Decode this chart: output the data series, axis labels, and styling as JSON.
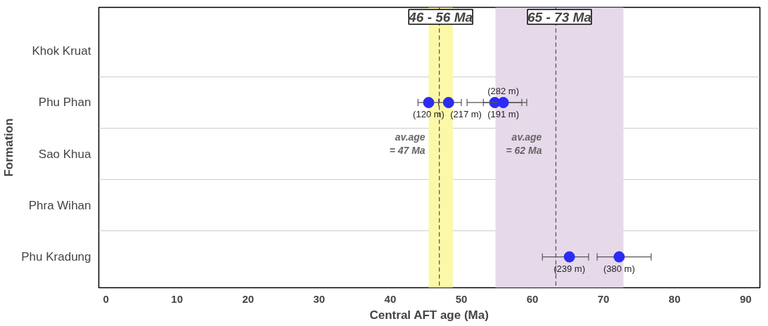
{
  "chart_data": {
    "type": "scatter",
    "orientation": "horizontal",
    "xlabel": "Central AFT age (Ma)",
    "ylabel": "Formation",
    "categories": [
      "Khok Kruat",
      "Phu Phan",
      "Sao Khua",
      "Phra Wihan",
      "Phu Kradung"
    ],
    "xlim": [
      -1,
      92
    ],
    "xticks": [
      0,
      10,
      20,
      30,
      40,
      50,
      60,
      70,
      80,
      90
    ],
    "grid": "y",
    "marker": "circle",
    "legend": false,
    "series": [
      {
        "color": "#2b2bf5",
        "values": [
          null,
          45.4,
          null,
          null,
          65.2
        ],
        "errors": [
          null,
          [
            43.9,
            46.8
          ],
          null,
          null,
          [
            61.4,
            67.9
          ]
        ]
      },
      {
        "color": "#2b2bf5",
        "values": [
          null,
          48.2,
          null,
          null,
          72.2
        ],
        "errors": [
          null,
          [
            46.8,
            50.0
          ],
          null,
          null,
          [
            69.1,
            76.7
          ]
        ]
      },
      {
        "color": "#2b2bf5",
        "values": [
          null,
          54.7,
          null,
          null,
          null
        ],
        "errors": [
          null,
          [
            50.8,
            58.5
          ],
          null,
          null,
          null
        ]
      },
      {
        "color": "#2b2bf5",
        "values": [
          null,
          55.9,
          null,
          null,
          null
        ],
        "errors": [
          null,
          [
            53.1,
            59.2
          ],
          null,
          null,
          null
        ]
      }
    ],
    "bands": [
      {
        "axis": "x",
        "from": 45.4,
        "to": 48.8,
        "label": "46 - 56 Ma",
        "color": "#fbf9a8"
      },
      {
        "axis": "x",
        "from": 54.8,
        "to": 72.8,
        "label": "65 - 73 Ma",
        "color": "#e6d9ea"
      }
    ],
    "ref_lines": [
      {
        "axis": "x",
        "value": 46.9,
        "color": "#555555",
        "line_style": "dashed"
      },
      {
        "axis": "x",
        "value": 63.3,
        "color": "#555555",
        "line_style": "dashed"
      }
    ],
    "annotations": [
      {
        "text": "(120 m)",
        "x": 45.4,
        "y": "Phu Phan"
      },
      {
        "text": "(217 m)",
        "x": 48.2,
        "y": "Phu Phan"
      },
      {
        "text": "(191 m)",
        "x": 54.7,
        "y": "Phu Phan"
      },
      {
        "text": "(282 m)",
        "x": 55.9,
        "y": "Phu Phan"
      },
      {
        "text": "(239 m)",
        "x": 65.2,
        "y": "Phu Kradung"
      },
      {
        "text": "(380 m)",
        "x": 72.2,
        "y": "Phu Kradung"
      },
      {
        "text": "av.age\n= 47 Ma",
        "x": 46.9,
        "y": "Sao Khua"
      },
      {
        "text": "av.age\n= 62 Ma",
        "x": 63.3,
        "y": "Sao Khua"
      }
    ]
  }
}
